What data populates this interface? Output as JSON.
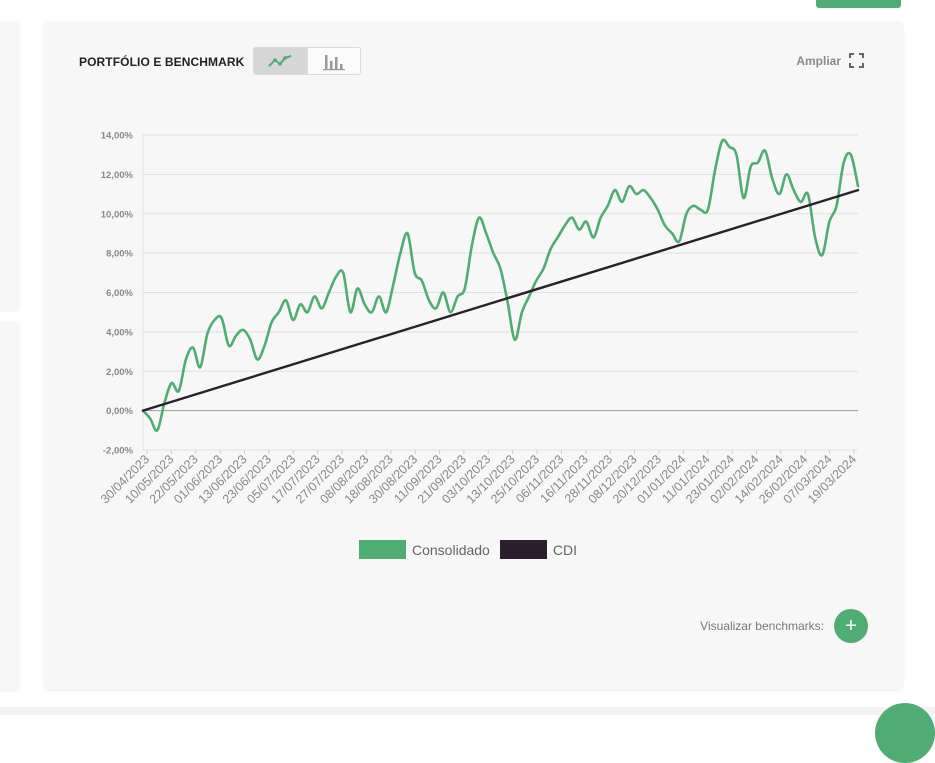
{
  "card": {
    "title": "PORTFÓLIO E BENCHMARK",
    "expand_label": "Ampliar",
    "toggle": {
      "active": "line",
      "icons": [
        "line-chart-icon",
        "bar-chart-icon"
      ]
    },
    "benchmarks_label": "Visualizar benchmarks:",
    "add_symbol": "+"
  },
  "colors": {
    "consolidado": "#4fac73",
    "cdi": "#2b1f2e",
    "accent": "#4fac73"
  },
  "chart_data": {
    "type": "line",
    "title": "",
    "xlabel": "",
    "ylabel": "",
    "ylim": [
      -2,
      14
    ],
    "grid": true,
    "legend_position": "bottom-center",
    "y_ticks": [
      "14,00%",
      "12,00%",
      "10,00%",
      "8,00%",
      "6,00%",
      "4,00%",
      "2,00%",
      "0,00%",
      "-2,00%"
    ],
    "y_tick_values": [
      14,
      12,
      10,
      8,
      6,
      4,
      2,
      0,
      -2
    ],
    "x_ticks": [
      "30/04/2023",
      "10/05/2023",
      "22/05/2023",
      "01/06/2023",
      "13/06/2023",
      "23/06/2023",
      "05/07/2023",
      "17/07/2023",
      "27/07/2023",
      "08/08/2023",
      "18/08/2023",
      "30/08/2023",
      "11/09/2023",
      "21/09/2023",
      "03/10/2023",
      "13/10/2023",
      "25/10/2023",
      "06/11/2023",
      "16/11/2023",
      "28/11/2023",
      "08/12/2023",
      "20/12/2023",
      "01/01/2024",
      "11/01/2024",
      "23/01/2024",
      "02/02/2024",
      "14/02/2024",
      "26/02/2024",
      "07/03/2024",
      "19/03/2024"
    ],
    "x_range": [
      0,
      30
    ],
    "series": [
      {
        "name": "Consolidado",
        "x": [
          0,
          0.3,
          0.6,
          0.9,
          1.2,
          1.5,
          1.8,
          2.1,
          2.4,
          2.7,
          3.0,
          3.3,
          3.6,
          3.9,
          4.2,
          4.5,
          4.8,
          5.1,
          5.4,
          5.7,
          6.0,
          6.3,
          6.6,
          6.9,
          7.2,
          7.5,
          7.8,
          8.1,
          8.4,
          8.7,
          9.0,
          9.3,
          9.6,
          9.9,
          10.2,
          10.5,
          10.8,
          11.1,
          11.4,
          11.7,
          12.0,
          12.3,
          12.6,
          12.9,
          13.2,
          13.5,
          13.8,
          14.1,
          14.4,
          14.7,
          15.0,
          15.3,
          15.6,
          15.9,
          16.2,
          16.5,
          16.8,
          17.1,
          17.4,
          17.7,
          18.0,
          18.3,
          18.6,
          18.9,
          19.2,
          19.5,
          19.8,
          20.1,
          20.4,
          20.7,
          21.0,
          21.3,
          21.6,
          21.9,
          22.2,
          22.5,
          22.8,
          23.1,
          23.4,
          23.7,
          24.0,
          24.3,
          24.6,
          24.9,
          25.2,
          25.5,
          25.8,
          26.1,
          26.4,
          26.7,
          27.0,
          27.3,
          27.6,
          27.9,
          28.2,
          28.5,
          28.8,
          29.1,
          29.4,
          29.7,
          30.0
        ],
        "y": [
          0.0,
          -0.4,
          -1.0,
          0.4,
          1.4,
          1.0,
          2.6,
          3.2,
          2.2,
          3.9,
          4.6,
          4.7,
          3.3,
          3.8,
          4.1,
          3.6,
          2.6,
          3.3,
          4.5,
          5.0,
          5.6,
          4.6,
          5.4,
          5.0,
          5.8,
          5.2,
          6.0,
          6.8,
          7.0,
          5.0,
          6.2,
          5.4,
          5.0,
          5.8,
          5.0,
          6.4,
          8.0,
          9.0,
          7.0,
          6.6,
          5.6,
          5.2,
          6.0,
          5.0,
          5.8,
          6.2,
          8.4,
          9.8,
          9.0,
          8.0,
          7.2,
          5.5,
          3.6,
          5.0,
          5.8,
          6.6,
          7.2,
          8.2,
          8.8,
          9.4,
          9.8,
          9.2,
          9.6,
          8.8,
          9.8,
          10.4,
          11.2,
          10.6,
          11.4,
          11.0,
          11.2,
          10.8,
          10.2,
          9.4,
          9.0,
          8.6,
          10.0,
          10.4,
          10.2,
          10.2,
          12.2,
          13.7,
          13.4,
          13.0,
          10.8,
          12.4,
          12.6,
          13.2,
          11.8,
          11.0,
          12.0,
          11.2,
          10.6,
          11.0,
          8.8,
          7.9,
          9.6,
          10.4,
          12.6,
          13.0,
          11.4
        ]
      },
      {
        "name": "CDI",
        "x": [
          0,
          30
        ],
        "y": [
          0.0,
          11.2
        ]
      }
    ]
  }
}
